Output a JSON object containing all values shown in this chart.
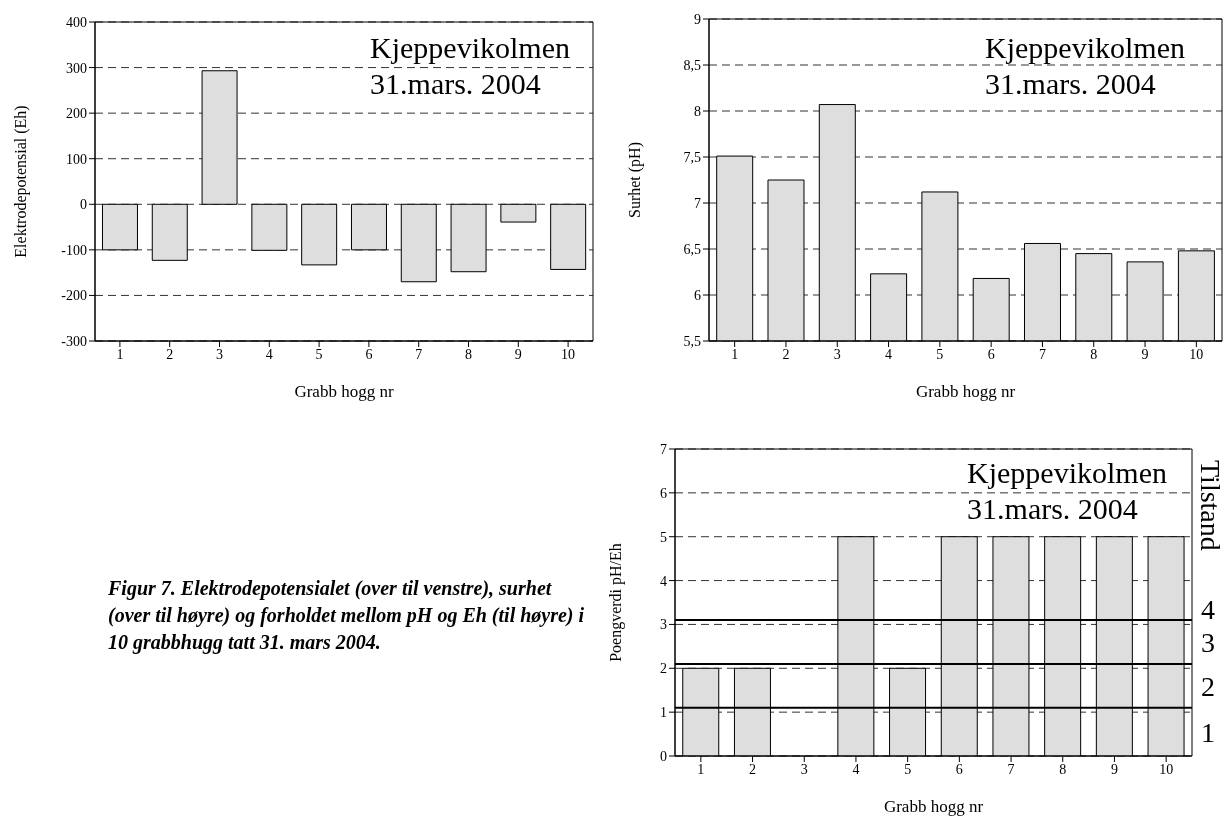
{
  "chart_data": [
    {
      "type": "bar",
      "categories": [
        "1",
        "2",
        "3",
        "4",
        "5",
        "6",
        "7",
        "8",
        "9",
        "10"
      ],
      "values": [
        -100,
        -123,
        293,
        -101,
        -133,
        -100,
        -170,
        -148,
        -39,
        -143
      ],
      "color": "#dedede",
      "xlabel": "Grabb hogg nr",
      "ylabel": "Elektrodepotensial (Eh)",
      "ylim": [
        -300,
        400
      ],
      "yticks": [
        -300,
        -200,
        -100,
        0,
        100,
        200,
        300,
        400
      ],
      "grid": "y",
      "annotations": [
        "Kjeppevikolmen",
        "31.mars. 2004"
      ]
    },
    {
      "type": "bar",
      "categories": [
        "1",
        "2",
        "3",
        "4",
        "5",
        "6",
        "7",
        "8",
        "9",
        "10"
      ],
      "values": [
        7.51,
        7.25,
        8.07,
        6.23,
        7.12,
        6.18,
        6.56,
        6.45,
        6.36,
        6.48
      ],
      "color": "#dedede",
      "xlabel": "Grabb hogg nr",
      "ylabel": "Surhet (pH)",
      "ylim": [
        5.5,
        9
      ],
      "yticks": [
        {
          "value": 5.5,
          "label": "5,5"
        },
        6,
        {
          "value": 6.5,
          "label": "6,5"
        },
        7,
        {
          "value": 7.5,
          "label": "7,5"
        },
        8,
        {
          "value": 8.5,
          "label": "8,5"
        },
        9
      ],
      "grid": "y",
      "annotations": [
        "Kjeppevikolmen",
        "31.mars. 2004"
      ]
    },
    {
      "type": "bar",
      "categories": [
        "1",
        "2",
        "3",
        "4",
        "5",
        "6",
        "7",
        "8",
        "9",
        "10"
      ],
      "values": [
        2,
        2,
        0,
        5,
        2,
        5,
        5,
        5,
        5,
        5
      ],
      "color": "#dedede",
      "xlabel": "Grabb hogg nr",
      "ylabel": "Poengverdi pH/Eh",
      "y2label": "Tilstand",
      "ylim": [
        0,
        7
      ],
      "yticks": [
        0,
        1,
        2,
        3,
        4,
        5,
        6,
        7
      ],
      "grid": "y",
      "ref_lines": [
        {
          "axis": "y",
          "value": 1.1,
          "color": "#000000",
          "line_style": "solid"
        },
        {
          "axis": "y",
          "value": 2.1,
          "color": "#000000",
          "line_style": "solid"
        },
        {
          "axis": "y",
          "value": 3.1,
          "color": "#000000",
          "line_style": "solid"
        }
      ],
      "annotations": [
        "Kjeppevikolmen",
        "31.mars. 2004",
        "Figur 7. Elektrodepotensialet (over til venstre), surhet (over til høyre) og forholdet mellom pH og Eh (til høyre) i 10 grabbhugg tatt 31. mars 2004.",
        "1",
        "2",
        "3",
        "4"
      ]
    }
  ]
}
